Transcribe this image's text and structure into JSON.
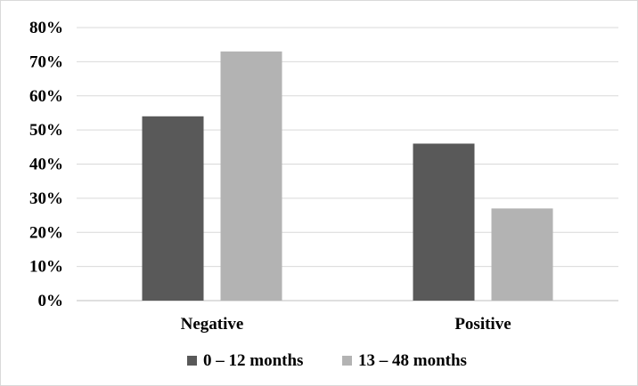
{
  "chart_data": {
    "type": "bar",
    "title": "",
    "xlabel": "",
    "ylabel": "",
    "categories": [
      "Negative",
      "Positive"
    ],
    "series": [
      {
        "name": "0 – 12 months",
        "values": [
          54,
          46
        ],
        "color": "#595959"
      },
      {
        "name": "13 – 48 months",
        "values": [
          73,
          27
        ],
        "color": "#b3b3b3"
      }
    ],
    "ylim": [
      0,
      80
    ],
    "yticks": [
      0,
      10,
      20,
      30,
      40,
      50,
      60,
      70,
      80
    ],
    "ytick_labels": [
      "0%",
      "10%",
      "20%",
      "30%",
      "40%",
      "50%",
      "60%",
      "70%",
      "80%"
    ],
    "grid": true,
    "legend_position": "bottom"
  }
}
